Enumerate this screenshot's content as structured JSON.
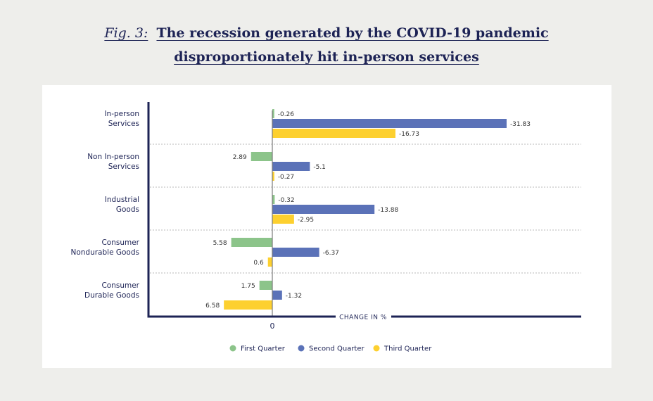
{
  "header": {
    "fig_label": "Fig. 3:",
    "title_line1": "The recession generated by the COVID-19 pandemic",
    "title_line2": "disproportionately hit in-person services"
  },
  "chart_data": {
    "type": "bar",
    "orientation": "horizontal",
    "title": "Fig. 3: The recession generated by the COVID-19 pandemic disproportionately hit in-person services",
    "xlabel": "CHANGE IN %",
    "ylabel": "",
    "x_tick_labels": [
      "0"
    ],
    "note": "Printed labels are shown as-is; bars extending right of zero carry negative labels (declines), bars extending left carry positive labels.",
    "categories": [
      [
        "In-person",
        "Services"
      ],
      [
        "Non In-person",
        "Services"
      ],
      [
        "Industrial",
        "Goods"
      ],
      [
        "Consumer",
        "Nondurable Goods"
      ],
      [
        "Consumer",
        "Durable Goods"
      ]
    ],
    "series": [
      {
        "name": "First Quarter",
        "color": "#8cc48a",
        "values": [
          -0.26,
          2.89,
          -0.32,
          5.58,
          1.75
        ],
        "labels": [
          "-0.26",
          "2.89",
          "-0.32",
          "5.58",
          "1.75"
        ]
      },
      {
        "name": "Second Quarter",
        "color": "#5b72b8",
        "values": [
          -31.83,
          -5.1,
          -13.88,
          -6.37,
          -1.32
        ],
        "labels": [
          "-31.83",
          "-5.1",
          "-13.88",
          "-6.37",
          "-1.32"
        ]
      },
      {
        "name": "Third Quarter",
        "color": "#fdd02f",
        "values": [
          -16.73,
          -0.27,
          -2.95,
          0.6,
          6.58
        ],
        "labels": [
          "-16.73",
          "-0.27",
          "-2.95",
          "0.6",
          "6.58"
        ]
      }
    ],
    "bar_direction": "negative values drawn to the right of zero, positive values to the left",
    "xlim": [
      -36,
      16
    ],
    "grid": "dotted horizontal separators between categories",
    "legend": "bottom-center"
  }
}
